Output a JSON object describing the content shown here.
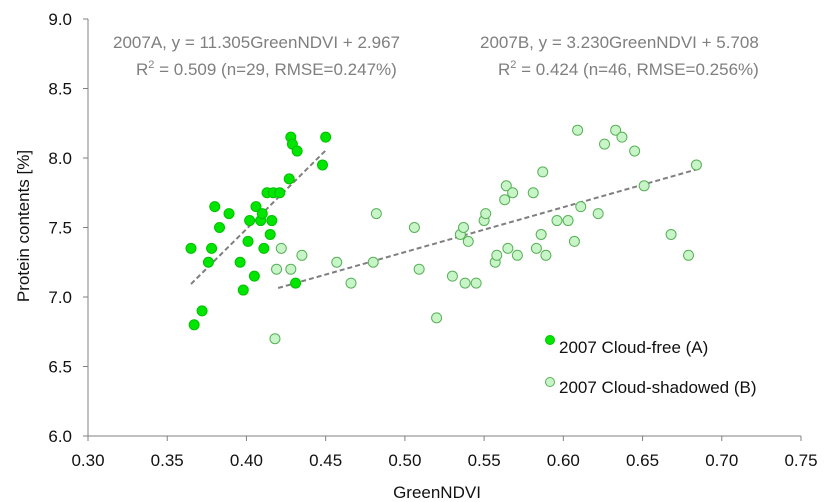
{
  "chart_data": {
    "type": "scatter",
    "xlabel": "GreenNDVI",
    "ylabel": "Protein contents [%]",
    "xlim": [
      0.3,
      0.75
    ],
    "ylim": [
      6.0,
      9.0
    ],
    "x_ticks": [
      "0.30",
      "0.35",
      "0.40",
      "0.45",
      "0.50",
      "0.55",
      "0.60",
      "0.65",
      "0.70",
      "0.75"
    ],
    "y_ticks": [
      "6.0",
      "6.5",
      "7.0",
      "7.5",
      "8.0",
      "8.5",
      "9.0"
    ],
    "grid": false,
    "legend_position": "bottom-right",
    "annotations": {
      "a_line1": "2007A, y = 11.305GreenNDVI + 2.967",
      "a_line2_pre": "R",
      "a_line2_sup": "2",
      "a_line2_post": " = 0.509 (n=29, RMSE=0.247%)",
      "b_line1": "2007B, y = 3.230GreenNDVI + 5.708",
      "b_line2_pre": "R",
      "b_line2_sup": "2",
      "b_line2_post": " = 0.424 (n=46, RMSE=0.256%)"
    },
    "series": [
      {
        "name": "2007 Cloud-free (A)",
        "color": "#00e600",
        "stroke": "#00c000",
        "filled": true,
        "fit": {
          "slope": 11.305,
          "intercept": 2.967,
          "x_range": [
            0.365,
            0.451
          ]
        },
        "points": [
          [
            0.365,
            7.35
          ],
          [
            0.367,
            6.8
          ],
          [
            0.372,
            6.9
          ],
          [
            0.376,
            7.25
          ],
          [
            0.378,
            7.35
          ],
          [
            0.38,
            7.65
          ],
          [
            0.383,
            7.5
          ],
          [
            0.389,
            7.6
          ],
          [
            0.396,
            7.25
          ],
          [
            0.398,
            7.05
          ],
          [
            0.401,
            7.4
          ],
          [
            0.402,
            7.55
          ],
          [
            0.405,
            7.15
          ],
          [
            0.406,
            7.65
          ],
          [
            0.409,
            7.55
          ],
          [
            0.41,
            7.6
          ],
          [
            0.411,
            7.35
          ],
          [
            0.413,
            7.75
          ],
          [
            0.415,
            7.45
          ],
          [
            0.416,
            7.55
          ],
          [
            0.417,
            7.75
          ],
          [
            0.421,
            7.75
          ],
          [
            0.427,
            7.85
          ],
          [
            0.428,
            8.15
          ],
          [
            0.429,
            8.1
          ],
          [
            0.432,
            8.05
          ],
          [
            0.431,
            7.1
          ],
          [
            0.448,
            7.95
          ],
          [
            0.45,
            8.15
          ]
        ]
      },
      {
        "name": "2007 Cloud-shadowed (B)",
        "color": "#c8f5c8",
        "stroke": "#58b058",
        "filled": false,
        "fit": {
          "slope": 3.23,
          "intercept": 5.708,
          "x_range": [
            0.42,
            0.685
          ]
        },
        "points": [
          [
            0.418,
            6.7
          ],
          [
            0.419,
            7.2
          ],
          [
            0.422,
            7.35
          ],
          [
            0.428,
            7.2
          ],
          [
            0.435,
            7.3
          ],
          [
            0.457,
            7.25
          ],
          [
            0.466,
            7.1
          ],
          [
            0.48,
            7.25
          ],
          [
            0.482,
            7.6
          ],
          [
            0.506,
            7.5
          ],
          [
            0.509,
            7.2
          ],
          [
            0.52,
            6.85
          ],
          [
            0.53,
            7.15
          ],
          [
            0.535,
            7.45
          ],
          [
            0.537,
            7.5
          ],
          [
            0.538,
            7.1
          ],
          [
            0.54,
            7.4
          ],
          [
            0.545,
            7.1
          ],
          [
            0.55,
            7.55
          ],
          [
            0.551,
            7.6
          ],
          [
            0.557,
            7.25
          ],
          [
            0.558,
            7.3
          ],
          [
            0.563,
            7.7
          ],
          [
            0.564,
            7.8
          ],
          [
            0.565,
            7.35
          ],
          [
            0.568,
            7.75
          ],
          [
            0.571,
            7.3
          ],
          [
            0.581,
            7.75
          ],
          [
            0.583,
            7.35
          ],
          [
            0.586,
            7.45
          ],
          [
            0.587,
            7.9
          ],
          [
            0.589,
            7.3
          ],
          [
            0.596,
            7.55
          ],
          [
            0.603,
            7.55
          ],
          [
            0.607,
            7.4
          ],
          [
            0.609,
            8.2
          ],
          [
            0.611,
            7.65
          ],
          [
            0.622,
            7.6
          ],
          [
            0.626,
            8.1
          ],
          [
            0.633,
            8.2
          ],
          [
            0.637,
            8.15
          ],
          [
            0.645,
            8.05
          ],
          [
            0.651,
            7.8
          ],
          [
            0.668,
            7.45
          ],
          [
            0.679,
            7.3
          ],
          [
            0.684,
            7.95
          ]
        ]
      }
    ]
  }
}
